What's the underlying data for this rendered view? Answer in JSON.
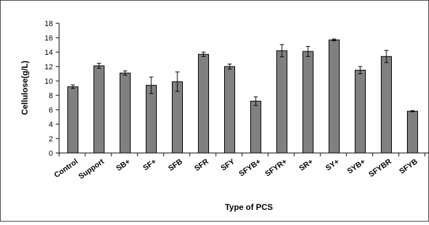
{
  "chart_data": {
    "type": "bar",
    "title": "",
    "xlabel": "Type of PCS",
    "ylabel": "Cellulose(g/L)",
    "ylim": [
      0,
      18
    ],
    "yticks": [
      0,
      2,
      4,
      6,
      8,
      10,
      12,
      14,
      16,
      18
    ],
    "grid": false,
    "legend": "none",
    "bar_color": "#808080",
    "categories": [
      "Control",
      "Support",
      "SB+",
      "SF+",
      "SFB",
      "SFR",
      "SFY",
      "SFYB+",
      "SFYR+",
      "SR+",
      "SY+",
      "SYB+",
      "SFYBR",
      "SFYB"
    ],
    "values": [
      9.2,
      12.1,
      11.1,
      9.4,
      9.9,
      13.7,
      12.0,
      7.2,
      14.2,
      14.1,
      15.7,
      11.5,
      13.4,
      5.8
    ],
    "errors": [
      0.25,
      0.35,
      0.3,
      1.15,
      1.35,
      0.3,
      0.35,
      0.6,
      0.85,
      0.7,
      0.12,
      0.5,
      0.85,
      0.08
    ]
  }
}
